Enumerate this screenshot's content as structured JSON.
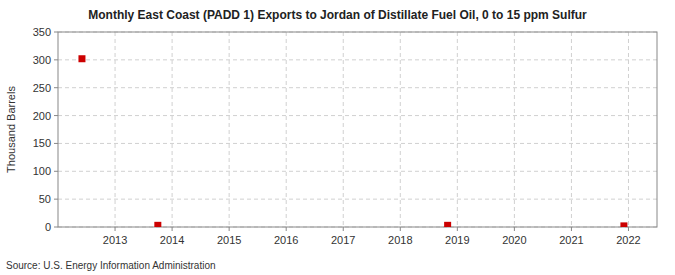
{
  "chart_data": {
    "type": "scatter",
    "title": "Monthly East Coast (PADD 1) Exports to Jordan of Distillate Fuel Oil, 0 to 15 ppm Sulfur",
    "ylabel": "Thousand Barrels",
    "annotations": [
      "Source: U.S. Energy Information Administration"
    ],
    "x": [
      2012.42,
      2013.75,
      2018.83,
      2021.92
    ],
    "values": [
      302,
      3,
      3,
      2
    ],
    "color": "#cc0000",
    "marker": "square",
    "xlim": [
      2012.0,
      2022.5
    ],
    "ylim": [
      0,
      350
    ],
    "xticks": [
      2013,
      2014,
      2015,
      2016,
      2017,
      2018,
      2019,
      2020,
      2021,
      2022
    ],
    "yticks": [
      0,
      50,
      100,
      150,
      200,
      250,
      300,
      350
    ],
    "grid": true
  }
}
